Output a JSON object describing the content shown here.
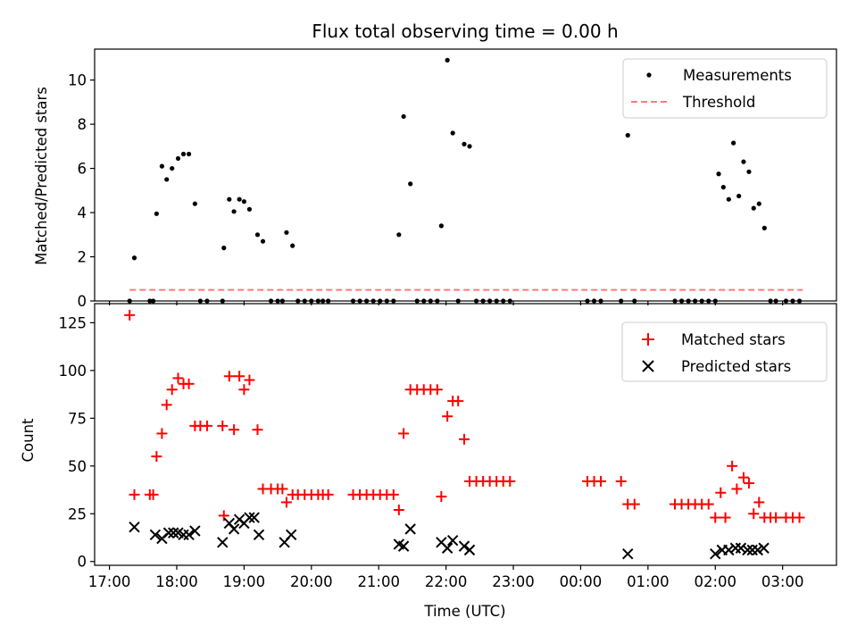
{
  "chart_data": [
    {
      "type": "scatter",
      "title": "Flux total observing time = 0.00 h",
      "ylabel": "Matched/Predicted stars",
      "xlabel": "",
      "ylim": [
        0,
        11.4
      ],
      "yticks": [
        0,
        2,
        4,
        6,
        8,
        10
      ],
      "legend_position": "top-right",
      "series": [
        {
          "name": "Measurements",
          "marker": "dot",
          "color": "#000000",
          "points": [
            [
              17.3,
              0
            ],
            [
              17.37,
              1.95
            ],
            [
              17.6,
              0
            ],
            [
              17.65,
              0
            ],
            [
              17.7,
              3.95
            ],
            [
              17.78,
              6.1
            ],
            [
              17.85,
              5.5
            ],
            [
              17.93,
              6.0
            ],
            [
              18.02,
              6.45
            ],
            [
              18.1,
              6.65
            ],
            [
              18.18,
              6.65
            ],
            [
              18.27,
              4.4
            ],
            [
              18.35,
              0
            ],
            [
              18.45,
              0
            ],
            [
              18.68,
              0
            ],
            [
              18.7,
              2.4
            ],
            [
              18.78,
              4.6
            ],
            [
              18.85,
              4.05
            ],
            [
              18.93,
              4.6
            ],
            [
              19.0,
              4.5
            ],
            [
              19.08,
              4.15
            ],
            [
              19.2,
              3.0
            ],
            [
              19.28,
              2.7
            ],
            [
              19.4,
              0
            ],
            [
              19.5,
              0
            ],
            [
              19.57,
              0
            ],
            [
              19.63,
              3.1
            ],
            [
              19.72,
              2.5
            ],
            [
              19.8,
              0
            ],
            [
              19.9,
              0
            ],
            [
              20.0,
              0
            ],
            [
              20.1,
              0
            ],
            [
              20.17,
              0
            ],
            [
              20.25,
              0
            ],
            [
              20.62,
              0
            ],
            [
              20.72,
              0
            ],
            [
              20.82,
              0
            ],
            [
              20.92,
              0
            ],
            [
              21.02,
              0
            ],
            [
              21.12,
              0
            ],
            [
              21.22,
              0
            ],
            [
              21.3,
              3.0
            ],
            [
              21.37,
              8.35
            ],
            [
              21.47,
              5.3
            ],
            [
              21.57,
              0
            ],
            [
              21.67,
              0
            ],
            [
              21.77,
              0
            ],
            [
              21.87,
              0
            ],
            [
              21.93,
              3.4
            ],
            [
              22.02,
              10.9
            ],
            [
              22.1,
              7.6
            ],
            [
              22.18,
              0
            ],
            [
              22.27,
              7.1
            ],
            [
              22.35,
              7.0
            ],
            [
              22.45,
              0
            ],
            [
              22.55,
              0
            ],
            [
              22.65,
              0
            ],
            [
              22.75,
              0
            ],
            [
              22.85,
              0
            ],
            [
              22.95,
              0
            ],
            [
              24.1,
              0
            ],
            [
              24.2,
              0
            ],
            [
              24.3,
              0
            ],
            [
              24.6,
              0
            ],
            [
              24.7,
              7.5
            ],
            [
              24.8,
              0
            ],
            [
              25.4,
              0
            ],
            [
              25.5,
              0
            ],
            [
              25.6,
              0
            ],
            [
              25.7,
              0
            ],
            [
              25.8,
              0
            ],
            [
              25.9,
              0
            ],
            [
              26.0,
              0
            ],
            [
              26.05,
              5.75
            ],
            [
              26.12,
              5.15
            ],
            [
              26.2,
              4.6
            ],
            [
              26.27,
              7.15
            ],
            [
              26.35,
              4.75
            ],
            [
              26.42,
              6.3
            ],
            [
              26.5,
              5.85
            ],
            [
              26.57,
              4.2
            ],
            [
              26.65,
              4.4
            ],
            [
              26.73,
              3.3
            ],
            [
              26.82,
              0
            ],
            [
              26.9,
              0
            ],
            [
              27.05,
              0
            ],
            [
              27.15,
              0
            ],
            [
              27.25,
              0
            ]
          ]
        },
        {
          "name": "Threshold",
          "marker": "dashed-line",
          "color": "#ff7a7a",
          "x": [
            17.3,
            27.3
          ],
          "y": [
            0.5,
            0.5
          ]
        }
      ]
    },
    {
      "type": "scatter",
      "title": "",
      "ylabel": "Count",
      "xlabel": "Time (UTC)",
      "ylim": [
        -2,
        135
      ],
      "yticks": [
        0,
        25,
        50,
        75,
        100,
        125
      ],
      "xlim": [
        16.78,
        27.8
      ],
      "xticks": [
        17,
        18,
        19,
        20,
        21,
        22,
        23,
        24,
        25,
        26,
        27
      ],
      "xtick_labels": [
        "17:00",
        "18:00",
        "19:00",
        "20:00",
        "21:00",
        "22:00",
        "23:00",
        "00:00",
        "01:00",
        "02:00",
        "03:00"
      ],
      "legend_position": "top-right",
      "series": [
        {
          "name": "Matched stars",
          "marker": "plus",
          "color": "#ff0000",
          "points": [
            [
              17.3,
              129
            ],
            [
              17.37,
              35
            ],
            [
              17.6,
              35
            ],
            [
              17.65,
              35
            ],
            [
              17.7,
              55
            ],
            [
              17.78,
              67
            ],
            [
              17.85,
              82
            ],
            [
              17.93,
              90
            ],
            [
              18.02,
              96
            ],
            [
              18.1,
              93
            ],
            [
              18.18,
              93
            ],
            [
              18.27,
              71
            ],
            [
              18.35,
              71
            ],
            [
              18.45,
              71
            ],
            [
              18.68,
              71
            ],
            [
              18.7,
              24
            ],
            [
              18.78,
              97
            ],
            [
              18.85,
              69
            ],
            [
              18.93,
              97
            ],
            [
              19.0,
              90
            ],
            [
              19.08,
              95
            ],
            [
              19.2,
              69
            ],
            [
              19.28,
              38
            ],
            [
              19.4,
              38
            ],
            [
              19.5,
              38
            ],
            [
              19.57,
              38
            ],
            [
              19.63,
              31
            ],
            [
              19.72,
              35
            ],
            [
              19.8,
              35
            ],
            [
              19.9,
              35
            ],
            [
              20.0,
              35
            ],
            [
              20.1,
              35
            ],
            [
              20.17,
              35
            ],
            [
              20.25,
              35
            ],
            [
              20.62,
              35
            ],
            [
              20.72,
              35
            ],
            [
              20.82,
              35
            ],
            [
              20.92,
              35
            ],
            [
              21.02,
              35
            ],
            [
              21.12,
              35
            ],
            [
              21.22,
              35
            ],
            [
              21.3,
              27
            ],
            [
              21.37,
              67
            ],
            [
              21.47,
              90
            ],
            [
              21.57,
              90
            ],
            [
              21.67,
              90
            ],
            [
              21.77,
              90
            ],
            [
              21.87,
              90
            ],
            [
              21.93,
              34
            ],
            [
              22.02,
              76
            ],
            [
              22.1,
              84
            ],
            [
              22.18,
              84
            ],
            [
              22.27,
              64
            ],
            [
              22.35,
              42
            ],
            [
              22.45,
              42
            ],
            [
              22.55,
              42
            ],
            [
              22.65,
              42
            ],
            [
              22.75,
              42
            ],
            [
              22.85,
              42
            ],
            [
              22.95,
              42
            ],
            [
              24.1,
              42
            ],
            [
              24.2,
              42
            ],
            [
              24.3,
              42
            ],
            [
              24.6,
              42
            ],
            [
              24.7,
              30
            ],
            [
              24.8,
              30
            ],
            [
              25.4,
              30
            ],
            [
              25.5,
              30
            ],
            [
              25.6,
              30
            ],
            [
              25.7,
              30
            ],
            [
              25.8,
              30
            ],
            [
              25.9,
              30
            ],
            [
              26.0,
              23
            ],
            [
              26.08,
              36
            ],
            [
              26.15,
              23
            ],
            [
              26.25,
              50
            ],
            [
              26.32,
              38
            ],
            [
              26.42,
              44
            ],
            [
              26.5,
              41
            ],
            [
              26.57,
              25
            ],
            [
              26.65,
              31
            ],
            [
              26.73,
              23
            ],
            [
              26.82,
              23
            ],
            [
              26.9,
              23
            ],
            [
              27.05,
              23
            ],
            [
              27.15,
              23
            ],
            [
              27.25,
              23
            ]
          ]
        },
        {
          "name": "Predicted stars",
          "marker": "x",
          "color": "#000000",
          "points": [
            [
              17.37,
              18
            ],
            [
              17.68,
              14
            ],
            [
              17.78,
              12
            ],
            [
              17.88,
              15
            ],
            [
              17.95,
              15
            ],
            [
              18.02,
              15
            ],
            [
              18.1,
              14
            ],
            [
              18.18,
              14
            ],
            [
              18.27,
              16
            ],
            [
              18.68,
              10
            ],
            [
              18.78,
              20
            ],
            [
              18.85,
              17
            ],
            [
              18.93,
              22
            ],
            [
              19.0,
              20
            ],
            [
              19.08,
              23
            ],
            [
              19.15,
              23
            ],
            [
              19.22,
              14
            ],
            [
              19.6,
              10
            ],
            [
              19.7,
              14
            ],
            [
              21.3,
              9
            ],
            [
              21.37,
              8
            ],
            [
              21.47,
              17
            ],
            [
              21.93,
              10
            ],
            [
              22.02,
              7
            ],
            [
              22.1,
              11
            ],
            [
              22.27,
              8
            ],
            [
              22.35,
              6
            ],
            [
              24.7,
              4
            ],
            [
              26.0,
              4
            ],
            [
              26.1,
              6
            ],
            [
              26.2,
              6
            ],
            [
              26.3,
              7
            ],
            [
              26.38,
              7
            ],
            [
              26.48,
              6
            ],
            [
              26.55,
              6
            ],
            [
              26.63,
              6
            ],
            [
              26.72,
              7
            ]
          ]
        }
      ]
    }
  ]
}
